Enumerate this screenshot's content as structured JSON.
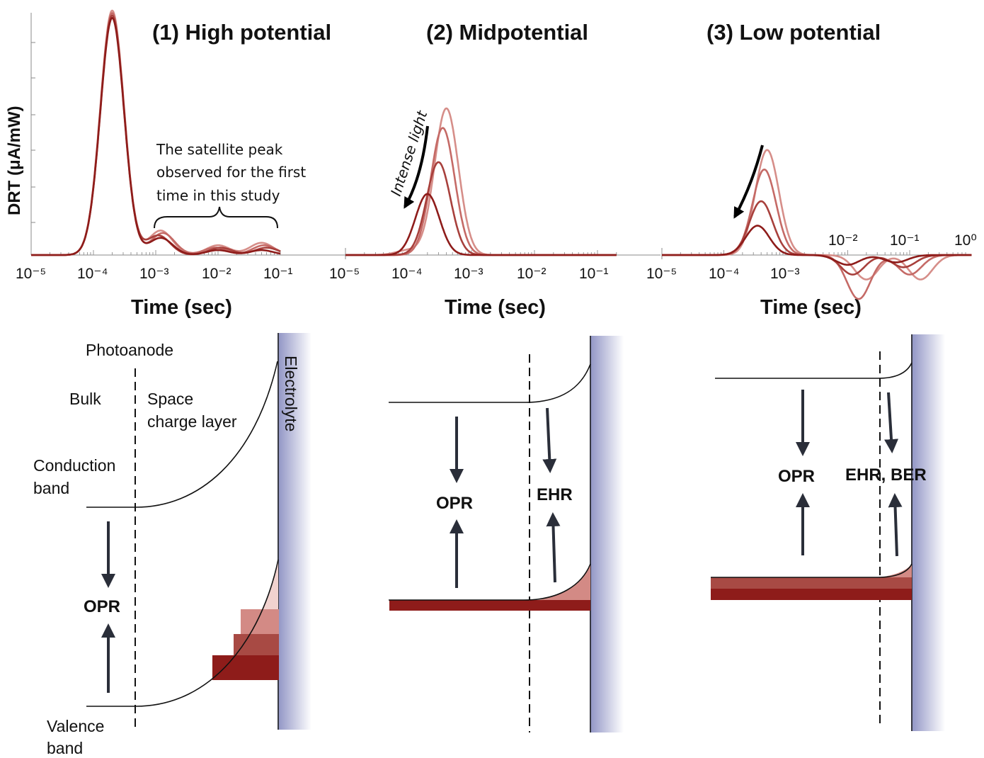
{
  "panels": [
    {
      "title": "(1) High potential",
      "xlabel": "Time (sec)"
    },
    {
      "title": "(2) Midpotential",
      "xlabel": "Time (sec)"
    },
    {
      "title": "(3) Low potential",
      "xlabel": "Time (sec)"
    }
  ],
  "ylabel": "DRT (μA/mW)",
  "tick_labels": {
    "panel1": [
      "10⁻⁵",
      "10⁻⁴",
      "10⁻³",
      "10⁻²",
      "10⁻¹"
    ],
    "panel2": [
      "10⁻⁵",
      "10⁻⁴",
      "10⁻³",
      "10⁻²",
      "10⁻¹"
    ],
    "panel3_below": [
      "10⁻⁵",
      "10⁻⁴",
      "10⁻³"
    ],
    "panel3_above": [
      "10⁻²",
      "10⁻¹",
      "10⁰"
    ]
  },
  "annotations": {
    "satellite_lines": [
      "The satellite peak",
      "observed for the first",
      "time in this study"
    ],
    "intense_light": "Intense light"
  },
  "band_labels": {
    "photoanode": "Photoanode",
    "bulk": "Bulk",
    "space_charge_1": "Space",
    "space_charge_2": "charge layer",
    "conduction_1": "Conduction",
    "conduction_2": "band",
    "valence_1": "Valence",
    "valence_2": "band",
    "electrolyte": "Electrolyte",
    "opr": "OPR",
    "ehr": "EHR",
    "ehr_ber": "EHR, BER"
  },
  "colors": {
    "curve_dark": "#8e1c1a",
    "curve_mid": "#a8403c",
    "curve_light": "#c56a66",
    "curve_pale": "#d68e89",
    "electrolyte": "#8f93c4",
    "arrow": "#2a2e39"
  },
  "chart_data": [
    {
      "type": "line",
      "title": "(1) High potential",
      "xlabel": "Time (sec)",
      "ylabel": "DRT (μA/mW)",
      "x_scale": "log",
      "xlim": [
        1e-05,
        0.1
      ],
      "series": [
        {
          "peaks": [
            {
              "tau": 0.0002,
              "height": 1.0
            },
            {
              "tau": 0.0012,
              "height": 0.1
            },
            {
              "tau": 0.01,
              "height": 0.04
            },
            {
              "tau": 0.05,
              "height": 0.05
            }
          ]
        },
        {
          "peaks": [
            {
              "tau": 0.0002,
              "height": 0.99
            },
            {
              "tau": 0.0013,
              "height": 0.09
            },
            {
              "tau": 0.009,
              "height": 0.03
            },
            {
              "tau": 0.055,
              "height": 0.04
            }
          ]
        },
        {
          "peaks": [
            {
              "tau": 0.0002,
              "height": 0.98
            },
            {
              "tau": 0.0011,
              "height": 0.08
            },
            {
              "tau": 0.011,
              "height": 0.03
            },
            {
              "tau": 0.06,
              "height": 0.03
            }
          ]
        },
        {
          "peaks": [
            {
              "tau": 0.0002,
              "height": 0.97
            },
            {
              "tau": 0.0012,
              "height": 0.07
            },
            {
              "tau": 0.01,
              "height": 0.02
            },
            {
              "tau": 0.05,
              "height": 0.02
            }
          ]
        }
      ]
    },
    {
      "type": "line",
      "title": "(2) Midpotential",
      "xlabel": "Time (sec)",
      "x_scale": "log",
      "xlim": [
        1e-05,
        0.2
      ],
      "series": [
        {
          "peaks": [
            {
              "tau": 0.0004,
              "height": 0.6
            },
            {
              "tau": 0.0001,
              "height": 0.02
            }
          ]
        },
        {
          "peaks": [
            {
              "tau": 0.00035,
              "height": 0.52
            }
          ]
        },
        {
          "peaks": [
            {
              "tau": 0.0003,
              "height": 0.38
            }
          ]
        },
        {
          "peaks": [
            {
              "tau": 0.0002,
              "height": 0.25
            }
          ]
        }
      ]
    },
    {
      "type": "line",
      "title": "(3) Low potential",
      "xlabel": "Time (sec)",
      "x_scale": "log",
      "xlim": [
        1e-05,
        1
      ],
      "series": [
        {
          "peaks": [
            {
              "tau": 0.0005,
              "height": 0.43
            },
            {
              "tau": 0.02,
              "height": -0.1
            },
            {
              "tau": 0.15,
              "height": -0.1
            }
          ]
        },
        {
          "peaks": [
            {
              "tau": 0.00045,
              "height": 0.35
            },
            {
              "tau": 0.015,
              "height": -0.18
            },
            {
              "tau": 0.1,
              "height": -0.08
            }
          ]
        },
        {
          "peaks": [
            {
              "tau": 0.0004,
              "height": 0.22
            },
            {
              "tau": 0.012,
              "height": -0.08
            },
            {
              "tau": 0.08,
              "height": -0.05
            }
          ]
        },
        {
          "peaks": [
            {
              "tau": 0.00035,
              "height": 0.12
            },
            {
              "tau": 0.01,
              "height": -0.04
            },
            {
              "tau": 0.06,
              "height": -0.03
            }
          ]
        }
      ]
    }
  ]
}
